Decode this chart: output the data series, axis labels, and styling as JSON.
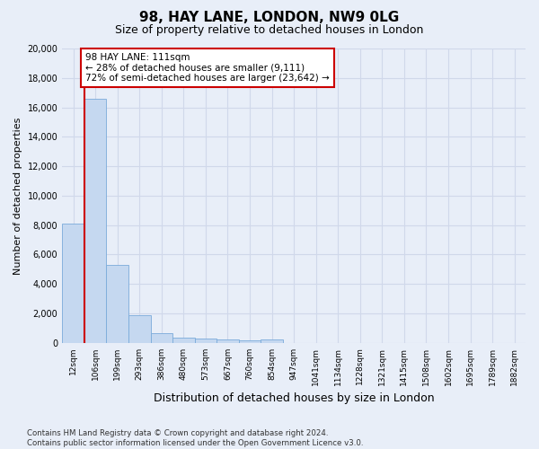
{
  "title": "98, HAY LANE, LONDON, NW9 0LG",
  "subtitle": "Size of property relative to detached houses in London",
  "xlabel": "Distribution of detached houses by size in London",
  "ylabel": "Number of detached properties",
  "bar_color": "#c5d8f0",
  "bar_edge_color": "#7aabdb",
  "categories": [
    "12sqm",
    "106sqm",
    "199sqm",
    "293sqm",
    "386sqm",
    "480sqm",
    "573sqm",
    "667sqm",
    "760sqm",
    "854sqm",
    "947sqm",
    "1041sqm",
    "1134sqm",
    "1228sqm",
    "1321sqm",
    "1415sqm",
    "1508sqm",
    "1602sqm",
    "1695sqm",
    "1789sqm",
    "1882sqm"
  ],
  "values": [
    8100,
    16600,
    5300,
    1850,
    680,
    360,
    270,
    210,
    170,
    200,
    0,
    0,
    0,
    0,
    0,
    0,
    0,
    0,
    0,
    0,
    0
  ],
  "ylim": [
    0,
    20000
  ],
  "yticks": [
    0,
    2000,
    4000,
    6000,
    8000,
    10000,
    12000,
    14000,
    16000,
    18000,
    20000
  ],
  "vline_color": "#cc0000",
  "vline_x": 0.5,
  "annotation_text": "98 HAY LANE: 111sqm\n← 28% of detached houses are smaller (9,111)\n72% of semi-detached houses are larger (23,642) →",
  "annotation_box_color": "white",
  "annotation_box_edge": "#cc0000",
  "footer": "Contains HM Land Registry data © Crown copyright and database right 2024.\nContains public sector information licensed under the Open Government Licence v3.0.",
  "background_color": "#e8eef8",
  "grid_color": "#d0d8ea",
  "title_fontsize": 11,
  "subtitle_fontsize": 9,
  "ylabel_fontsize": 8,
  "xlabel_fontsize": 9
}
